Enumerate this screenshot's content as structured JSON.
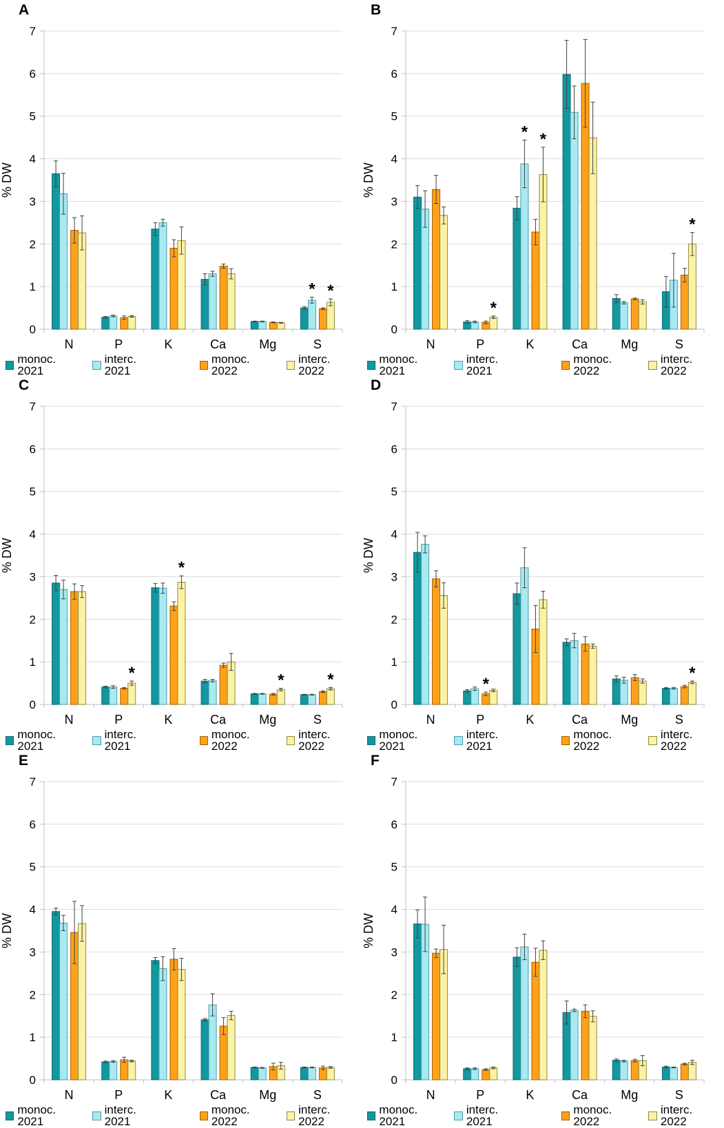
{
  "figure": {
    "ylabel": "% DW",
    "categories": [
      "N",
      "P",
      "K",
      "Ca",
      "Mg",
      "S"
    ],
    "legend_labels": [
      "monoc. 2021",
      "interc. 2021",
      "monoc. 2022",
      "interc. 2022"
    ],
    "significance_marker": "*",
    "colors": {
      "monoc. 2021": {
        "fill": "#12989E",
        "border": "#0A6B70"
      },
      "interc. 2021": {
        "fill": "#A8E9F2",
        "border": "#4D9DA8"
      },
      "monoc. 2022": {
        "fill": "#FFA119",
        "border": "#A85E00"
      },
      "interc. 2022": {
        "fill": "#FBF2A3",
        "border": "#8F8A40"
      },
      "gridline": "#DCDCDC",
      "axis": "#BFBFBF",
      "error_bar": "#404040",
      "text": "#000000"
    }
  },
  "chart_data": [
    {
      "panel": "A",
      "type": "bar",
      "ylabel": "% DW",
      "ylim": [
        0,
        7
      ],
      "yticks": [
        0,
        1,
        2,
        3,
        4,
        5,
        6,
        7
      ],
      "categories": [
        "N",
        "P",
        "K",
        "Ca",
        "Mg",
        "S"
      ],
      "series": [
        {
          "name": "monoc. 2021",
          "values": [
            3.65,
            0.28,
            2.35,
            1.17,
            0.18,
            0.5
          ],
          "errors": [
            0.3,
            0.02,
            0.15,
            0.13,
            0.01,
            0.03
          ]
        },
        {
          "name": "interc. 2021",
          "values": [
            3.18,
            0.31,
            2.5,
            1.3,
            0.18,
            0.68
          ],
          "errors": [
            0.48,
            0.02,
            0.08,
            0.06,
            0.01,
            0.07
          ]
        },
        {
          "name": "monoc. 2022",
          "values": [
            2.32,
            0.27,
            1.9,
            1.48,
            0.16,
            0.48
          ],
          "errors": [
            0.3,
            0.04,
            0.2,
            0.05,
            0.01,
            0.02
          ]
        },
        {
          "name": "interc. 2022",
          "values": [
            2.26,
            0.3,
            2.08,
            1.3,
            0.15,
            0.63
          ],
          "errors": [
            0.4,
            0.02,
            0.32,
            0.12,
            0.01,
            0.08
          ]
        }
      ],
      "significance": [
        {
          "category": "S",
          "series": "interc. 2021"
        },
        {
          "category": "S",
          "series": "interc. 2022"
        }
      ]
    },
    {
      "panel": "B",
      "type": "bar",
      "ylabel": "% DW",
      "ylim": [
        0,
        7
      ],
      "yticks": [
        0,
        1,
        2,
        3,
        4,
        5,
        6,
        7
      ],
      "categories": [
        "N",
        "P",
        "K",
        "Ca",
        "Mg",
        "S"
      ],
      "series": [
        {
          "name": "monoc. 2021",
          "values": [
            3.1,
            0.17,
            2.84,
            5.98,
            0.72,
            0.88
          ],
          "errors": [
            0.27,
            0.03,
            0.27,
            0.8,
            0.09,
            0.36
          ]
        },
        {
          "name": "interc. 2021",
          "values": [
            2.82,
            0.17,
            3.88,
            5.09,
            0.62,
            1.15
          ],
          "errors": [
            0.43,
            0.02,
            0.56,
            0.62,
            0.03,
            0.63
          ]
        },
        {
          "name": "monoc. 2022",
          "values": [
            3.28,
            0.16,
            2.28,
            5.77,
            0.71,
            1.27
          ],
          "errors": [
            0.33,
            0.03,
            0.3,
            1.03,
            0.02,
            0.16
          ]
        },
        {
          "name": "interc. 2022",
          "values": [
            2.67,
            0.28,
            3.63,
            4.49,
            0.64,
            2.0
          ],
          "errors": [
            0.2,
            0.03,
            0.64,
            0.84,
            0.05,
            0.27
          ]
        }
      ],
      "significance": [
        {
          "category": "P",
          "series": "interc. 2022"
        },
        {
          "category": "K",
          "series": "interc. 2021"
        },
        {
          "category": "K",
          "series": "interc. 2022"
        },
        {
          "category": "S",
          "series": "interc. 2022"
        }
      ]
    },
    {
      "panel": "C",
      "type": "bar",
      "ylabel": "% DW",
      "ylim": [
        0,
        7
      ],
      "yticks": [
        0,
        1,
        2,
        3,
        4,
        5,
        6,
        7
      ],
      "categories": [
        "N",
        "P",
        "K",
        "Ca",
        "Mg",
        "S"
      ],
      "series": [
        {
          "name": "monoc. 2021",
          "values": [
            2.85,
            0.41,
            2.74,
            0.55,
            0.25,
            0.23
          ],
          "errors": [
            0.18,
            0.02,
            0.1,
            0.04,
            0.01,
            0.01
          ]
        },
        {
          "name": "interc. 2021",
          "values": [
            2.7,
            0.41,
            2.73,
            0.56,
            0.25,
            0.23
          ],
          "errors": [
            0.22,
            0.03,
            0.12,
            0.03,
            0.01,
            0.01
          ]
        },
        {
          "name": "monoc. 2022",
          "values": [
            2.65,
            0.38,
            2.31,
            0.92,
            0.24,
            0.3
          ],
          "errors": [
            0.18,
            0.02,
            0.1,
            0.05,
            0.02,
            0.02
          ]
        },
        {
          "name": "interc. 2022",
          "values": [
            2.65,
            0.5,
            2.87,
            1.0,
            0.35,
            0.37
          ],
          "errors": [
            0.14,
            0.05,
            0.15,
            0.2,
            0.03,
            0.03
          ]
        }
      ],
      "significance": [
        {
          "category": "P",
          "series": "interc. 2022"
        },
        {
          "category": "K",
          "series": "interc. 2022"
        },
        {
          "category": "Mg",
          "series": "interc. 2022"
        },
        {
          "category": "S",
          "series": "interc. 2022"
        }
      ]
    },
    {
      "panel": "D",
      "type": "bar",
      "ylabel": "% DW",
      "ylim": [
        0,
        7
      ],
      "yticks": [
        0,
        1,
        2,
        3,
        4,
        5,
        6,
        7
      ],
      "categories": [
        "N",
        "P",
        "K",
        "Ca",
        "Mg",
        "S"
      ],
      "series": [
        {
          "name": "monoc. 2021",
          "values": [
            3.57,
            0.32,
            2.6,
            1.46,
            0.6,
            0.38
          ],
          "errors": [
            0.47,
            0.03,
            0.25,
            0.08,
            0.07,
            0.02
          ]
        },
        {
          "name": "interc. 2021",
          "values": [
            3.76,
            0.37,
            3.21,
            1.5,
            0.57,
            0.38
          ],
          "errors": [
            0.2,
            0.04,
            0.47,
            0.17,
            0.07,
            0.02
          ]
        },
        {
          "name": "monoc. 2022",
          "values": [
            2.95,
            0.25,
            1.77,
            1.42,
            0.63,
            0.42
          ],
          "errors": [
            0.19,
            0.04,
            0.55,
            0.17,
            0.07,
            0.03
          ]
        },
        {
          "name": "interc. 2022",
          "values": [
            2.56,
            0.33,
            2.46,
            1.37,
            0.55,
            0.52
          ],
          "errors": [
            0.3,
            0.03,
            0.2,
            0.05,
            0.05,
            0.03
          ]
        }
      ],
      "significance": [
        {
          "category": "P",
          "series": "monoc. 2022"
        },
        {
          "category": "S",
          "series": "interc. 2022"
        }
      ]
    },
    {
      "panel": "E",
      "type": "bar",
      "ylabel": "% DW",
      "ylim": [
        0,
        7
      ],
      "yticks": [
        0,
        1,
        2,
        3,
        4,
        5,
        6,
        7
      ],
      "categories": [
        "N",
        "P",
        "K",
        "Ca",
        "Mg",
        "S"
      ],
      "series": [
        {
          "name": "monoc. 2021",
          "values": [
            3.95,
            0.42,
            2.8,
            1.41,
            0.29,
            0.29
          ],
          "errors": [
            0.08,
            0.02,
            0.07,
            0.03,
            0.01,
            0.01
          ]
        },
        {
          "name": "interc. 2021",
          "values": [
            3.68,
            0.43,
            2.61,
            1.76,
            0.28,
            0.29
          ],
          "errors": [
            0.18,
            0.02,
            0.28,
            0.26,
            0.01,
            0.01
          ]
        },
        {
          "name": "monoc. 2022",
          "values": [
            3.46,
            0.47,
            2.83,
            1.26,
            0.31,
            0.28
          ],
          "errors": [
            0.73,
            0.06,
            0.25,
            0.2,
            0.08,
            0.04
          ]
        },
        {
          "name": "interc. 2022",
          "values": [
            3.67,
            0.44,
            2.59,
            1.51,
            0.33,
            0.29
          ],
          "errors": [
            0.42,
            0.02,
            0.26,
            0.1,
            0.08,
            0.02
          ]
        }
      ],
      "significance": []
    },
    {
      "panel": "F",
      "type": "bar",
      "ylabel": "% DW",
      "ylim": [
        0,
        7
      ],
      "yticks": [
        0,
        1,
        2,
        3,
        4,
        5,
        6,
        7
      ],
      "categories": [
        "N",
        "P",
        "K",
        "Ca",
        "Mg",
        "S"
      ],
      "series": [
        {
          "name": "monoc. 2021",
          "values": [
            3.66,
            0.26,
            2.88,
            1.58,
            0.46,
            0.3
          ],
          "errors": [
            0.33,
            0.02,
            0.22,
            0.27,
            0.03,
            0.02
          ]
        },
        {
          "name": "interc. 2021",
          "values": [
            3.65,
            0.26,
            3.12,
            1.63,
            0.44,
            0.29
          ],
          "errors": [
            0.64,
            0.02,
            0.3,
            0.03,
            0.02,
            0.01
          ]
        },
        {
          "name": "monoc. 2022",
          "values": [
            2.97,
            0.24,
            2.76,
            1.61,
            0.45,
            0.37
          ],
          "errors": [
            0.1,
            0.02,
            0.33,
            0.15,
            0.03,
            0.02
          ]
        },
        {
          "name": "interc. 2022",
          "values": [
            3.06,
            0.28,
            3.04,
            1.49,
            0.45,
            0.41
          ],
          "errors": [
            0.57,
            0.02,
            0.22,
            0.13,
            0.12,
            0.05
          ]
        }
      ],
      "significance": []
    }
  ]
}
